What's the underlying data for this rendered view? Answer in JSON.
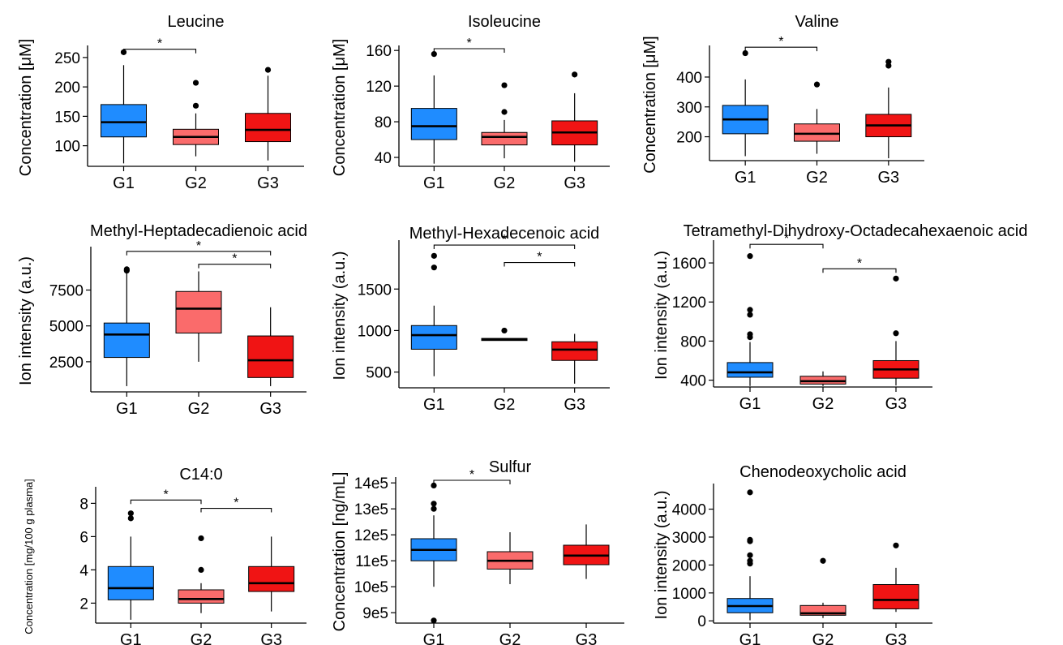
{
  "colors": {
    "G1": "#1f8cff",
    "G2": "#fa6b6b",
    "G3": "#f01414"
  },
  "chart_data": [
    {
      "type": "box",
      "title": "Leucine",
      "ylabel": "Concentration  [μM]",
      "categories": [
        "G1",
        "G2",
        "G3"
      ],
      "ylim": [
        65,
        265
      ],
      "yticks": [
        100,
        150,
        200,
        250
      ],
      "ytick_labels": [
        "100",
        "150",
        "200",
        "250"
      ],
      "boxes": [
        {
          "group": "G1",
          "low": 70,
          "q1": 115,
          "median": 140,
          "q3": 170,
          "high": 237,
          "outliers": [
            259
          ]
        },
        {
          "group": "G2",
          "low": 82,
          "q1": 102,
          "median": 115,
          "q3": 128,
          "high": 155,
          "outliers": [
            168,
            207
          ]
        },
        {
          "group": "G3",
          "low": 75,
          "q1": 107,
          "median": 127,
          "q3": 155,
          "high": 219,
          "outliers": [
            229
          ]
        }
      ],
      "significance": [
        {
          "from": "G1",
          "to": "G2",
          "y": 264,
          "label": "*"
        }
      ]
    },
    {
      "type": "box",
      "title": "Isoleucine",
      "ylabel": "Concentration  [μM]",
      "categories": [
        "G1",
        "G2",
        "G3"
      ],
      "ylim": [
        30,
        162
      ],
      "yticks": [
        40,
        80,
        120,
        160
      ],
      "ytick_labels": [
        "40",
        "80",
        "120",
        "160"
      ],
      "boxes": [
        {
          "group": "G1",
          "low": 33,
          "q1": 60,
          "median": 75,
          "q3": 95,
          "high": 132,
          "outliers": [
            156
          ]
        },
        {
          "group": "G2",
          "low": 39,
          "q1": 54,
          "median": 63,
          "q3": 68,
          "high": 82,
          "outliers": [
            91,
            121
          ]
        },
        {
          "group": "G3",
          "low": 35,
          "q1": 54,
          "median": 68,
          "q3": 81,
          "high": 112,
          "outliers": [
            133
          ]
        }
      ],
      "significance": [
        {
          "from": "G1",
          "to": "G2",
          "y": 162,
          "label": "*"
        }
      ]
    },
    {
      "type": "box",
      "title": "Valine",
      "ylabel": "Concentration  [μM]",
      "categories": [
        "G1",
        "G2",
        "G3"
      ],
      "ylim": [
        120,
        495
      ],
      "yticks": [
        200,
        300,
        400
      ],
      "ytick_labels": [
        "200",
        "300",
        "400"
      ],
      "boxes": [
        {
          "group": "G1",
          "low": 135,
          "q1": 210,
          "median": 258,
          "q3": 305,
          "high": 392,
          "outliers": [
            480
          ]
        },
        {
          "group": "G2",
          "low": 143,
          "q1": 185,
          "median": 210,
          "q3": 243,
          "high": 293,
          "outliers": [
            375
          ]
        },
        {
          "group": "G3",
          "low": 128,
          "q1": 200,
          "median": 238,
          "q3": 275,
          "high": 365,
          "outliers": [
            438,
            451
          ]
        }
      ],
      "significance": [
        {
          "from": "G1",
          "to": "G2",
          "y": 500,
          "label": "*"
        }
      ]
    },
    {
      "type": "box",
      "title": "Methyl-Heptadecadienoic acid",
      "ylabel": "Ion intensity (a.u.)",
      "categories": [
        "G1",
        "G2",
        "G3"
      ],
      "ylim": [
        400,
        10300
      ],
      "yticks": [
        2500,
        5000,
        7500
      ],
      "ytick_labels": [
        "2500",
        "5000",
        "7500"
      ],
      "boxes": [
        {
          "group": "G1",
          "low": 800,
          "q1": 2800,
          "median": 4400,
          "q3": 5200,
          "high": 8800,
          "outliers": [
            8850,
            8950
          ]
        },
        {
          "group": "G2",
          "low": 2500,
          "q1": 4500,
          "median": 6200,
          "q3": 7400,
          "high": 8800,
          "outliers": []
        },
        {
          "group": "G3",
          "low": 800,
          "q1": 1400,
          "median": 2600,
          "q3": 4300,
          "high": 6300,
          "outliers": []
        }
      ],
      "significance": [
        {
          "from": "G1",
          "to": "G3",
          "y": 10200,
          "label": "*"
        },
        {
          "from": "G2",
          "to": "G3",
          "y": 9300,
          "label": "*"
        }
      ]
    },
    {
      "type": "box",
      "title": "Methyl-Hexadecenoic acid",
      "ylabel": "Ion intensity (a.u.)",
      "categories": [
        "G1",
        "G2",
        "G3"
      ],
      "ylim": [
        310,
        2050
      ],
      "yticks": [
        500,
        1000,
        1500
      ],
      "ytick_labels": [
        "500",
        "1000",
        "1500"
      ],
      "boxes": [
        {
          "group": "G1",
          "low": 450,
          "q1": 775,
          "median": 945,
          "q3": 1060,
          "high": 1300,
          "outliers": [
            1760,
            1900
          ]
        },
        {
          "group": "G2",
          "low": 880,
          "q1": 880,
          "median": 895,
          "q3": 905,
          "high": 905,
          "outliers": [
            1000
          ]
        },
        {
          "group": "G3",
          "low": 360,
          "q1": 640,
          "median": 770,
          "q3": 865,
          "high": 960,
          "outliers": []
        }
      ],
      "significance": [
        {
          "from": "G1",
          "to": "G3",
          "y": 2030,
          "label": "*"
        },
        {
          "from": "G2",
          "to": "G3",
          "y": 1820,
          "label": "*"
        }
      ]
    },
    {
      "type": "box",
      "title": "Tetramethyl-Dihydroxy-Octadecahexaenoic acid",
      "ylabel": "Ion intensity (a.u.)",
      "categories": [
        "G1",
        "G2",
        "G3"
      ],
      "ylim": [
        330,
        1800
      ],
      "yticks": [
        400,
        800,
        1200,
        1600
      ],
      "ytick_labels": [
        "400",
        "800",
        "1200",
        "1600"
      ],
      "boxes": [
        {
          "group": "G1",
          "low": 340,
          "q1": 430,
          "median": 480,
          "q3": 580,
          "high": 790,
          "outliers": [
            840,
            870,
            1070,
            1120,
            1670
          ]
        },
        {
          "group": "G2",
          "low": 340,
          "q1": 360,
          "median": 390,
          "q3": 440,
          "high": 490,
          "outliers": []
        },
        {
          "group": "G3",
          "low": 345,
          "q1": 420,
          "median": 510,
          "q3": 600,
          "high": 800,
          "outliers": [
            880,
            1440
          ]
        }
      ],
      "significance": [
        {
          "from": "G1",
          "to": "G2",
          "y": 1790,
          "label": "*"
        },
        {
          "from": "G2",
          "to": "G3",
          "y": 1540,
          "label": "*"
        }
      ]
    },
    {
      "type": "box",
      "title": "C14:0",
      "ylabel": "Concentration  [mg/100 g plasma]",
      "categories": [
        "G1",
        "G2",
        "G3"
      ],
      "ylim": [
        0.8,
        8.8
      ],
      "yticks": [
        2,
        4,
        6,
        8
      ],
      "ytick_labels": [
        "2",
        "4",
        "6",
        "8"
      ],
      "boxes": [
        {
          "group": "G1",
          "low": 1.0,
          "q1": 2.2,
          "median": 2.9,
          "q3": 4.2,
          "high": 6.0,
          "outliers": [
            7.1,
            7.4
          ]
        },
        {
          "group": "G2",
          "low": 1.4,
          "q1": 2.0,
          "median": 2.25,
          "q3": 2.8,
          "high": 3.2,
          "outliers": [
            4.0,
            5.9
          ]
        },
        {
          "group": "G3",
          "low": 1.5,
          "q1": 2.7,
          "median": 3.2,
          "q3": 4.2,
          "high": 6.0,
          "outliers": []
        }
      ],
      "significance": [
        {
          "from": "G1",
          "to": "G2",
          "y": 8.2,
          "label": "*"
        },
        {
          "from": "G2",
          "to": "G3",
          "y": 7.7,
          "label": "*"
        }
      ]
    },
    {
      "type": "box",
      "title": "Sulfur",
      "ylabel": "Concentration   [ng/mL]",
      "categories": [
        "G1",
        "G2",
        "G3"
      ],
      "ylim": [
        860000,
        1410000
      ],
      "yticks": [
        900000,
        1000000,
        1100000,
        1200000,
        1300000,
        1400000
      ],
      "ytick_labels": [
        "9e5",
        "10e5",
        "11e5",
        "12e5",
        "13e5",
        "14e5"
      ],
      "boxes": [
        {
          "group": "G1",
          "low": 1000000,
          "q1": 1100000,
          "median": 1142000,
          "q3": 1185000,
          "high": 1275000,
          "outliers": [
            870000,
            1300000,
            1320000,
            1390000
          ]
        },
        {
          "group": "G2",
          "low": 1010000,
          "q1": 1068000,
          "median": 1100000,
          "q3": 1135000,
          "high": 1210000,
          "outliers": []
        },
        {
          "group": "G3",
          "low": 1030000,
          "q1": 1085000,
          "median": 1120000,
          "q3": 1160000,
          "high": 1240000,
          "outliers": []
        }
      ],
      "significance": [
        {
          "from": "G1",
          "to": "G2",
          "y": 1410000,
          "label": "*"
        }
      ]
    },
    {
      "type": "box",
      "title": "Chenodeoxycholic acid",
      "ylabel": "Ion intensity (a.u.)",
      "categories": [
        "G1",
        "G2",
        "G3"
      ],
      "ylim": [
        -80,
        4800
      ],
      "yticks": [
        0,
        1000,
        2000,
        3000,
        4000
      ],
      "ytick_labels": [
        "0",
        "1000",
        "2000",
        "3000",
        "4000"
      ],
      "boxes": [
        {
          "group": "G1",
          "low": 20,
          "q1": 290,
          "median": 530,
          "q3": 800,
          "high": 1600,
          "outliers": [
            2050,
            2150,
            2350,
            2850,
            2900,
            4600
          ]
        },
        {
          "group": "G2",
          "low": 100,
          "q1": 200,
          "median": 270,
          "q3": 550,
          "high": 650,
          "outliers": [
            2150
          ]
        },
        {
          "group": "G3",
          "low": 320,
          "q1": 430,
          "median": 750,
          "q3": 1300,
          "high": 1900,
          "outliers": [
            2700
          ]
        }
      ],
      "significance": []
    }
  ]
}
